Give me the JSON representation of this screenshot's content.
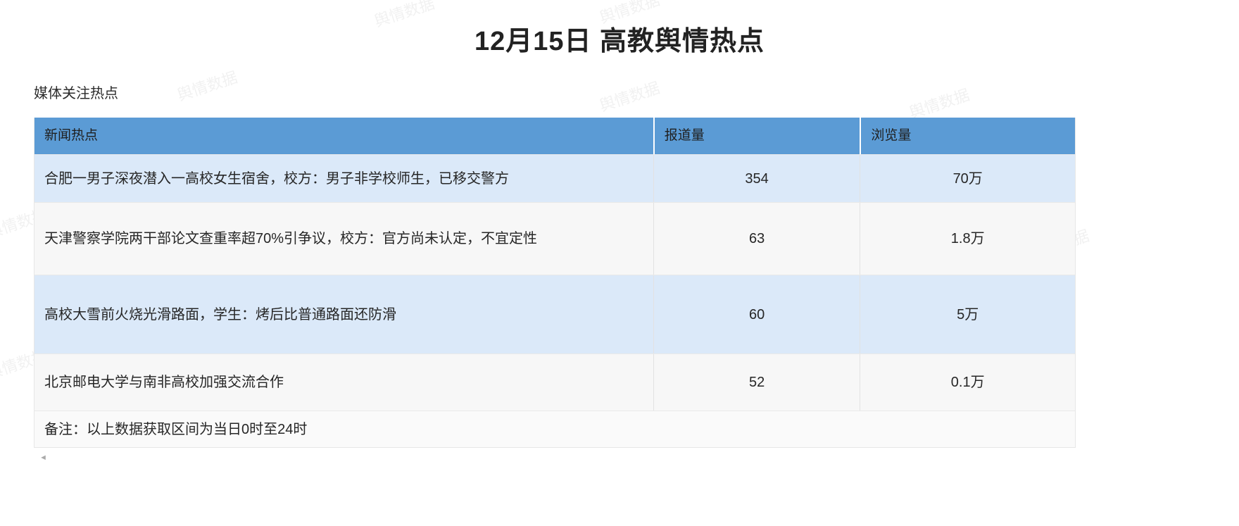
{
  "page": {
    "title": "12月15日 高教舆情热点",
    "section_title": "媒体关注热点",
    "watermark_text": "舆情数据"
  },
  "table": {
    "columns": {
      "news": "新闻热点",
      "reports": "报道量",
      "views": "浏览量"
    },
    "rows": [
      {
        "title": "合肥一男子深夜潜入一高校女生宿舍，校方：男子非学校师生，已移交警方",
        "reports": "354",
        "views": "70万"
      },
      {
        "title": "天津警察学院两干部论文查重率超70%引争议，校方：官方尚未认定，不宜定性",
        "reports": "63",
        "views": "1.8万"
      },
      {
        "title": "高校大雪前火烧光滑路面，学生：烤后比普通路面还防滑",
        "reports": "60",
        "views": "5万"
      },
      {
        "title": "北京邮电大学与南非高校加强交流合作",
        "reports": "52",
        "views": "0.1万"
      }
    ],
    "footnote": "备注：以上数据获取区间为当日0时至24时"
  },
  "colors": {
    "header_bg": "#5B9BD5",
    "row_alt_bg": "#DBE9F9",
    "row_plain_bg": "#F7F7F7",
    "text": "#262626"
  },
  "scrollbar": {
    "left_arrow_icon": "◄"
  }
}
